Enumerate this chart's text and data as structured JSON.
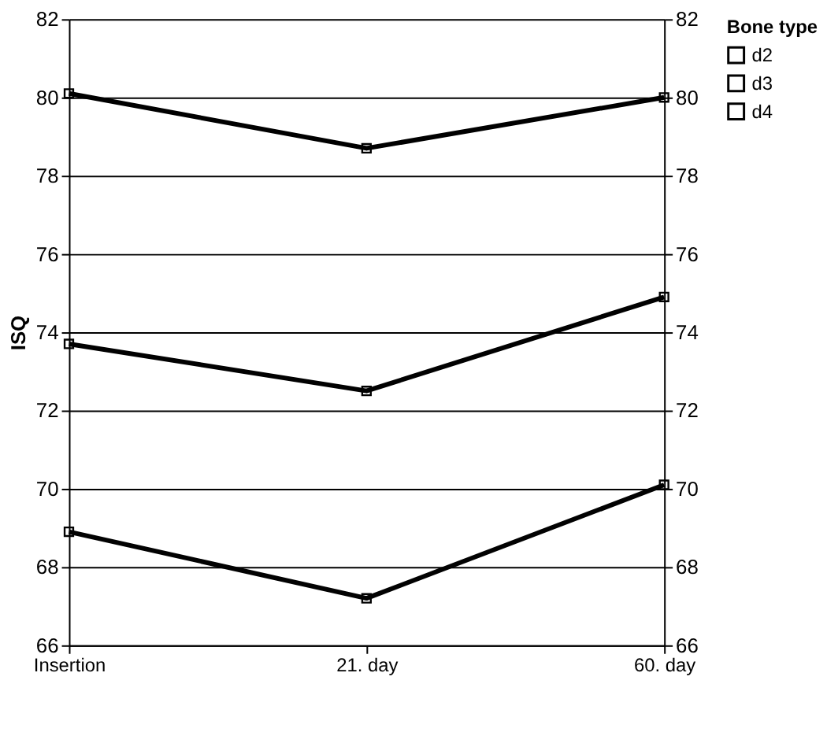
{
  "chart_data": {
    "type": "line",
    "ylabel": "ISQ",
    "legend_title": "Bone type",
    "categories": [
      "Insertion",
      "21. day",
      "60. day"
    ],
    "series": [
      {
        "name": "d2",
        "color": "#000000",
        "values": [
          80.1,
          78.7,
          80.0
        ]
      },
      {
        "name": "d3",
        "color": "#010101",
        "values": [
          73.7,
          72.5,
          74.9
        ]
      },
      {
        "name": "d4",
        "color": "#020202",
        "values": [
          68.9,
          67.2,
          70.1
        ]
      }
    ],
    "ylim": [
      66,
      82
    ],
    "yticks": [
      66,
      68,
      70,
      72,
      74,
      76,
      78,
      80,
      82
    ],
    "y2lim": [
      66,
      82
    ],
    "y2ticks": [
      66,
      68,
      70,
      72,
      74,
      76,
      78,
      80,
      82
    ],
    "grid": "y",
    "legend": "right",
    "marker": "square",
    "line_style": "solid"
  }
}
